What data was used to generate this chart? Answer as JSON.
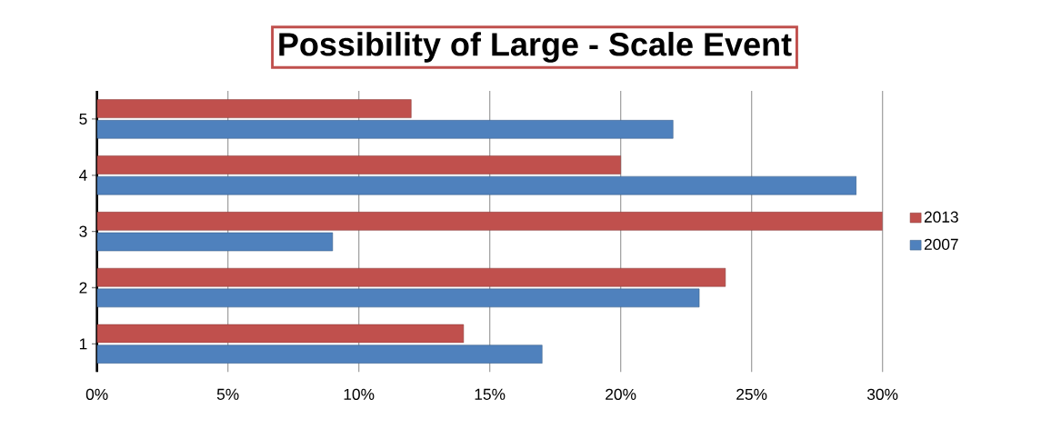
{
  "chart_data": {
    "type": "bar",
    "orientation": "horizontal",
    "title": "Possibility of Large - Scale Event",
    "categories": [
      "5",
      "4",
      "3",
      "2",
      "1"
    ],
    "series": [
      {
        "name": "2007",
        "color": "#4f81bd",
        "values": [
          22,
          29,
          9,
          23,
          17
        ]
      },
      {
        "name": "2013",
        "color": "#c0504d",
        "values": [
          12,
          20,
          30,
          24,
          14
        ]
      }
    ],
    "xlim": [
      0,
      30
    ],
    "xticks": [
      {
        "value": 0,
        "label": "0%"
      },
      {
        "value": 5,
        "label": "5%"
      },
      {
        "value": 10,
        "label": "10%"
      },
      {
        "value": 15,
        "label": "15%"
      },
      {
        "value": 20,
        "label": "20%"
      },
      {
        "value": 25,
        "label": "25%"
      },
      {
        "value": 30,
        "label": "30%"
      }
    ],
    "grid": "x",
    "legend": "right"
  }
}
